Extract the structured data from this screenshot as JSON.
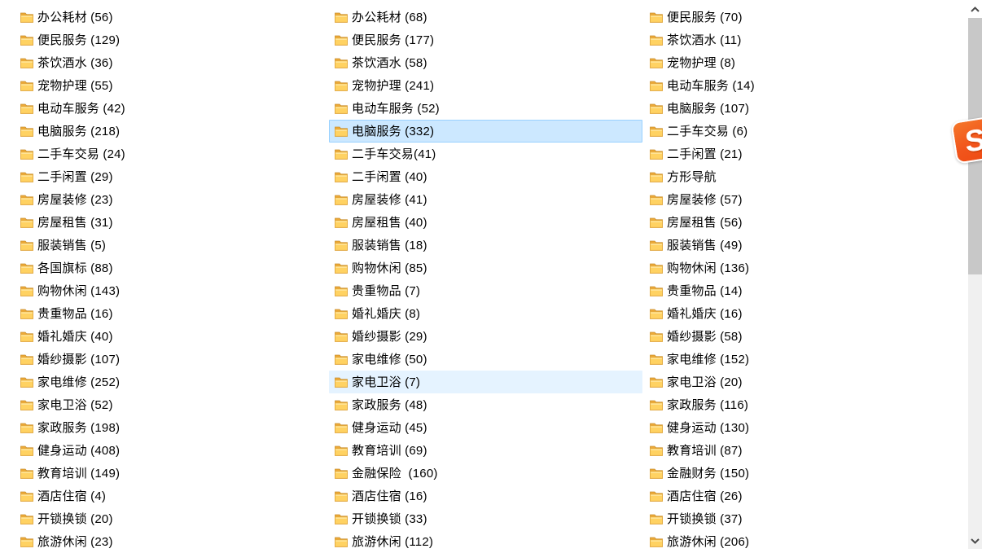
{
  "badge": {
    "letter": "S"
  },
  "colors": {
    "selection_bg": "#cce8ff",
    "selection_border": "#99d1ff",
    "hover_bg": "#e5f3ff",
    "scrollbar_track": "#f0f0f0",
    "scrollbar_thumb": "#c8c8c8",
    "badge_orange": "#f1551c",
    "folder_front": "#ffd262",
    "folder_back": "#eda937",
    "text": "#000000"
  },
  "icons": {
    "folder": "folder-icon",
    "scrollbar_up": "chevron-up-icon",
    "scrollbar_down": "chevron-down-icon",
    "badge": "s-badge"
  },
  "columns": [
    {
      "items": [
        {
          "label": "办公耗材 (56)",
          "state": "normal"
        },
        {
          "label": "便民服务 (129)",
          "state": "normal"
        },
        {
          "label": "茶饮酒水 (36)",
          "state": "normal"
        },
        {
          "label": "宠物护理 (55)",
          "state": "normal"
        },
        {
          "label": "电动车服务 (42)",
          "state": "normal"
        },
        {
          "label": "电脑服务 (218)",
          "state": "normal"
        },
        {
          "label": "二手车交易 (24)",
          "state": "normal"
        },
        {
          "label": "二手闲置 (29)",
          "state": "normal"
        },
        {
          "label": "房屋装修 (23)",
          "state": "normal"
        },
        {
          "label": "房屋租售 (31)",
          "state": "normal"
        },
        {
          "label": "服装销售 (5)",
          "state": "normal"
        },
        {
          "label": "各国旗标 (88)",
          "state": "normal"
        },
        {
          "label": "购物休闲 (143)",
          "state": "normal"
        },
        {
          "label": "贵重物品 (16)",
          "state": "normal"
        },
        {
          "label": "婚礼婚庆 (40)",
          "state": "normal"
        },
        {
          "label": "婚纱摄影 (107)",
          "state": "normal"
        },
        {
          "label": "家电维修 (252)",
          "state": "normal"
        },
        {
          "label": "家电卫浴 (52)",
          "state": "normal"
        },
        {
          "label": "家政服务 (198)",
          "state": "normal"
        },
        {
          "label": "健身运动 (408)",
          "state": "normal"
        },
        {
          "label": "教育培训 (149)",
          "state": "normal"
        },
        {
          "label": "酒店住宿 (4)",
          "state": "normal"
        },
        {
          "label": "开锁换锁 (20)",
          "state": "normal"
        },
        {
          "label": "旅游休闲 (23)",
          "state": "normal"
        }
      ]
    },
    {
      "items": [
        {
          "label": "办公耗材 (68)",
          "state": "normal"
        },
        {
          "label": "便民服务 (177)",
          "state": "normal"
        },
        {
          "label": "茶饮酒水 (58)",
          "state": "normal"
        },
        {
          "label": "宠物护理 (241)",
          "state": "normal"
        },
        {
          "label": "电动车服务 (52)",
          "state": "normal"
        },
        {
          "label": "电脑服务 (332)",
          "state": "selected"
        },
        {
          "label": "二手车交易(41)",
          "state": "normal"
        },
        {
          "label": "二手闲置 (40)",
          "state": "normal"
        },
        {
          "label": "房屋装修 (41)",
          "state": "normal"
        },
        {
          "label": "房屋租售 (40)",
          "state": "normal"
        },
        {
          "label": "服装销售 (18)",
          "state": "normal"
        },
        {
          "label": "购物休闲 (85)",
          "state": "normal"
        },
        {
          "label": "贵重物品 (7)",
          "state": "normal"
        },
        {
          "label": "婚礼婚庆 (8)",
          "state": "normal"
        },
        {
          "label": "婚纱摄影 (29)",
          "state": "normal"
        },
        {
          "label": "家电维修 (50)",
          "state": "normal"
        },
        {
          "label": "家电卫浴 (7)",
          "state": "hover"
        },
        {
          "label": "家政服务 (48)",
          "state": "normal"
        },
        {
          "label": "健身运动 (45)",
          "state": "normal"
        },
        {
          "label": "教育培训 (69)",
          "state": "normal"
        },
        {
          "label": "金融保险  (160)",
          "state": "normal"
        },
        {
          "label": "酒店住宿 (16)",
          "state": "normal"
        },
        {
          "label": "开锁换锁 (33)",
          "state": "normal"
        },
        {
          "label": "旅游休闲 (112)",
          "state": "normal"
        }
      ]
    },
    {
      "items": [
        {
          "label": "便民服务 (70)",
          "state": "normal"
        },
        {
          "label": "茶饮酒水 (11)",
          "state": "normal"
        },
        {
          "label": "宠物护理 (8)",
          "state": "normal"
        },
        {
          "label": "电动车服务 (14)",
          "state": "normal"
        },
        {
          "label": "电脑服务 (107)",
          "state": "normal"
        },
        {
          "label": "二手车交易 (6)",
          "state": "normal"
        },
        {
          "label": "二手闲置 (21)",
          "state": "normal"
        },
        {
          "label": "方形导航",
          "state": "normal"
        },
        {
          "label": "房屋装修 (57)",
          "state": "normal"
        },
        {
          "label": "房屋租售 (56)",
          "state": "normal"
        },
        {
          "label": "服装销售 (49)",
          "state": "normal"
        },
        {
          "label": "购物休闲 (136)",
          "state": "normal"
        },
        {
          "label": "贵重物品 (14)",
          "state": "normal"
        },
        {
          "label": "婚礼婚庆 (16)",
          "state": "normal"
        },
        {
          "label": "婚纱摄影 (58)",
          "state": "normal"
        },
        {
          "label": "家电维修 (152)",
          "state": "normal"
        },
        {
          "label": "家电卫浴 (20)",
          "state": "normal"
        },
        {
          "label": "家政服务 (116)",
          "state": "normal"
        },
        {
          "label": "健身运动 (130)",
          "state": "normal"
        },
        {
          "label": "教育培训 (87)",
          "state": "normal"
        },
        {
          "label": "金融财务 (150)",
          "state": "normal"
        },
        {
          "label": "酒店住宿 (26)",
          "state": "normal"
        },
        {
          "label": "开锁换锁 (37)",
          "state": "normal"
        },
        {
          "label": "旅游休闲 (206)",
          "state": "normal"
        }
      ]
    }
  ]
}
